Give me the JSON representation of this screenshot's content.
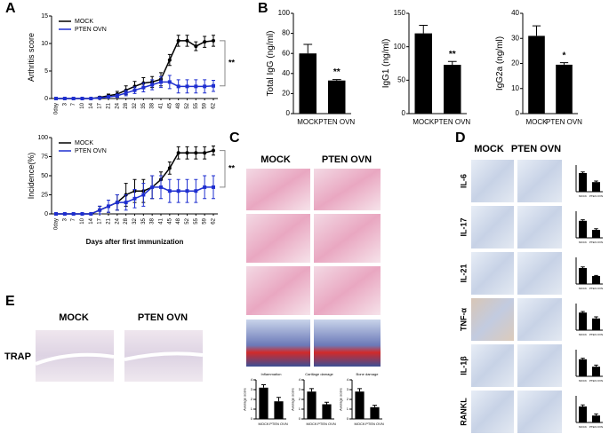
{
  "panel_labels": [
    "A",
    "B",
    "C",
    "D",
    "E"
  ],
  "panel_c": {
    "columns": [
      "MOCK",
      "PTEN OVN"
    ]
  },
  "panel_d": {
    "columns": [
      "MOCK",
      "PTEN OVN"
    ],
    "rows": [
      "IL-6",
      "IL-17",
      "IL-21",
      "TNF-α",
      "IL-1β",
      "RANKL"
    ]
  },
  "panel_e": {
    "columns": [
      "MOCK",
      "PTEN OVN"
    ],
    "row": "TRAP"
  },
  "chart_data": [
    {
      "type": "line",
      "ylabel": "Arthritis score",
      "annotation": "**",
      "categories": [
        "0day",
        "3",
        "7",
        "10",
        "14",
        "17",
        "21",
        "24",
        "28",
        "32",
        "35",
        "38",
        "41",
        "45",
        "48",
        "52",
        "55",
        "59",
        "62"
      ],
      "series": [
        {
          "name": "MOCK",
          "color": "#000000",
          "values": [
            0,
            0,
            0,
            0,
            0,
            0.2,
            0.5,
            0.8,
            1.5,
            2.2,
            2.8,
            3,
            3.5,
            7,
            10.5,
            10.5,
            9.5,
            10.3,
            10.5
          ],
          "errors": [
            0,
            0,
            0,
            0,
            0,
            0.2,
            0.3,
            0.5,
            0.8,
            0.9,
            1,
            1,
            1.2,
            1,
            1,
            1,
            0.8,
            1,
            1
          ]
        },
        {
          "name": "PTEN OVN",
          "color": "#1f2fd0",
          "values": [
            0,
            0,
            0,
            0,
            0,
            0.1,
            0.3,
            0.5,
            1,
            1.5,
            2,
            2.5,
            3,
            3,
            2.2,
            2.2,
            2.2,
            2.2,
            2.3
          ],
          "errors": [
            0,
            0,
            0,
            0,
            0,
            0.1,
            0.2,
            0.3,
            0.5,
            0.6,
            0.8,
            0.9,
            1,
            1.2,
            1.2,
            1.2,
            1.2,
            1.2,
            1
          ]
        }
      ],
      "ylim": [
        0,
        15
      ],
      "yticks": [
        0,
        5,
        10,
        15
      ]
    },
    {
      "type": "line",
      "ylabel": "Incidence(%)",
      "xlabel": "Days after first immunization",
      "annotation": "**",
      "categories": [
        "0day",
        "3",
        "7",
        "10",
        "14",
        "17",
        "21",
        "24",
        "28",
        "32",
        "35",
        "38",
        "41",
        "45",
        "48",
        "52",
        "55",
        "59",
        "62"
      ],
      "series": [
        {
          "name": "MOCK",
          "color": "#000000",
          "values": [
            0,
            0,
            0,
            0,
            0,
            5,
            10,
            15,
            25,
            30,
            30,
            35,
            45,
            60,
            80,
            80,
            80,
            80,
            83
          ],
          "errors": [
            0,
            0,
            0,
            0,
            0,
            5,
            8,
            10,
            15,
            15,
            15,
            15,
            10,
            8,
            8,
            8,
            8,
            8,
            6
          ]
        },
        {
          "name": "PTEN OVN",
          "color": "#1f2fd0",
          "values": [
            0,
            0,
            0,
            0,
            0,
            5,
            10,
            15,
            15,
            20,
            25,
            35,
            35,
            30,
            30,
            30,
            30,
            35,
            35
          ],
          "errors": [
            0,
            0,
            0,
            0,
            0,
            5,
            8,
            10,
            10,
            12,
            15,
            15,
            15,
            15,
            15,
            15,
            15,
            15,
            15
          ]
        }
      ],
      "ylim": [
        0,
        100
      ],
      "yticks": [
        0,
        25,
        50,
        75,
        100
      ]
    },
    {
      "type": "bar",
      "ylabel": "Total IgG (ng/ml)",
      "annotation": "**",
      "color": "#000000",
      "categories": [
        "MOCK",
        "PTEN OVN"
      ],
      "values": [
        60,
        33
      ],
      "errors": [
        9,
        1
      ],
      "ylim": [
        0,
        100
      ],
      "yticks": [
        0,
        20,
        40,
        60,
        80,
        100
      ]
    },
    {
      "type": "bar",
      "ylabel": "IgG1 (ng/ml)",
      "annotation": "**",
      "color": "#000000",
      "categories": [
        "MOCK",
        "PTEN OVN"
      ],
      "values": [
        120,
        73
      ],
      "errors": [
        12,
        5
      ],
      "ylim": [
        0,
        150
      ],
      "yticks": [
        0,
        50,
        100,
        150
      ]
    },
    {
      "type": "bar",
      "ylabel": "IgG2a (ng/ml)",
      "annotation": "*",
      "color": "#000000",
      "categories": [
        "MOCK",
        "PTEN OVN"
      ],
      "values": [
        31,
        19.5
      ],
      "errors": [
        4,
        0.8
      ],
      "ylim": [
        0,
        40
      ],
      "yticks": [
        0,
        10,
        20,
        30,
        40
      ]
    },
    {
      "type": "bar",
      "title": "Inflammation",
      "ylabel": "Average score",
      "color": "#000000",
      "categories": [
        "MOCK",
        "PTEN OVN"
      ],
      "values": [
        3.2,
        1.8
      ],
      "errors": [
        0.3,
        0.4
      ],
      "ylim": [
        0,
        4
      ],
      "yticks": [
        0,
        1,
        2,
        3,
        4
      ]
    },
    {
      "type": "bar",
      "title": "Cartilage damage",
      "ylabel": "Average score",
      "color": "#000000",
      "categories": [
        "MOCK",
        "PTEN OVN"
      ],
      "values": [
        2.8,
        1.5
      ],
      "errors": [
        0.3,
        0.2
      ],
      "ylim": [
        0,
        4
      ],
      "yticks": [
        0,
        1,
        2,
        3,
        4
      ]
    },
    {
      "type": "bar",
      "title": "Bone damage",
      "ylabel": "Average score",
      "color": "#000000",
      "categories": [
        "MOCK",
        "PTEN OVN"
      ],
      "values": [
        2.8,
        1.2
      ],
      "errors": [
        0.3,
        0.2
      ],
      "ylim": [
        0,
        4
      ],
      "yticks": [
        0,
        1,
        2,
        3,
        4
      ]
    },
    {
      "type": "bar",
      "color": "#000000",
      "categories": [
        "MOCK",
        "PTEN OVN"
      ],
      "values": [
        3.5,
        1.8
      ],
      "errors": [
        0.2,
        0.2
      ],
      "ylim": [
        0,
        5
      ]
    },
    {
      "type": "bar",
      "color": "#000000",
      "categories": [
        "MOCK",
        "PTEN OVN"
      ],
      "values": [
        3.2,
        1.5
      ],
      "errors": [
        0.2,
        0.2
      ],
      "ylim": [
        0,
        5
      ]
    },
    {
      "type": "bar",
      "color": "#000000",
      "categories": [
        "MOCK",
        "PTEN OVN"
      ],
      "values": [
        3.0,
        1.5
      ],
      "errors": [
        0.2,
        0.1
      ],
      "ylim": [
        0,
        5
      ]
    },
    {
      "type": "bar",
      "color": "#000000",
      "categories": [
        "MOCK",
        "PTEN OVN"
      ],
      "values": [
        3.3,
        2.2
      ],
      "errors": [
        0.2,
        0.3
      ],
      "ylim": [
        0,
        5
      ]
    },
    {
      "type": "bar",
      "color": "#000000",
      "categories": [
        "MOCK",
        "PTEN OVN"
      ],
      "values": [
        3.2,
        1.8
      ],
      "errors": [
        0.2,
        0.3
      ],
      "ylim": [
        0,
        5
      ]
    },
    {
      "type": "bar",
      "color": "#000000",
      "categories": [
        "MOCK",
        "PTEN OVN"
      ],
      "values": [
        3.0,
        1.3
      ],
      "errors": [
        0.3,
        0.3
      ],
      "ylim": [
        0,
        5
      ]
    }
  ]
}
